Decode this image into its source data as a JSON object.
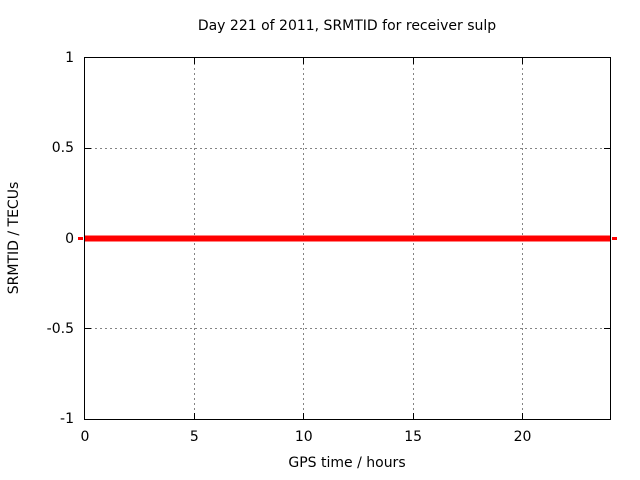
{
  "chart_data": {
    "type": "line",
    "title": "Day 221 of 2011, SRMTID for receiver sulp",
    "xlabel": "GPS time / hours",
    "ylabel": "SRMTID / TECUs",
    "xlim": [
      0,
      24
    ],
    "ylim": [
      -1,
      1
    ],
    "xticks": [
      {
        "value": 0,
        "label": "0"
      },
      {
        "value": 5,
        "label": "5"
      },
      {
        "value": 10,
        "label": "10"
      },
      {
        "value": 15,
        "label": "15"
      },
      {
        "value": 20,
        "label": "20"
      }
    ],
    "yticks": [
      {
        "value": 1,
        "label": "1"
      },
      {
        "value": 0.5,
        "label": "0.5"
      },
      {
        "value": 0,
        "label": "0"
      },
      {
        "value": -0.5,
        "label": "-0.5"
      },
      {
        "value": -1,
        "label": "-1"
      }
    ],
    "grid": true,
    "legend": null,
    "series": [
      {
        "name": "SRMTID",
        "color": "#ff0000",
        "line_width": 6,
        "x": [
          0,
          24
        ],
        "y": [
          0,
          0
        ]
      }
    ]
  },
  "colors": {
    "line": "#ff0000",
    "grid": "#848484",
    "axis": "#000000",
    "text": "#000000",
    "background": "#ffffff"
  }
}
